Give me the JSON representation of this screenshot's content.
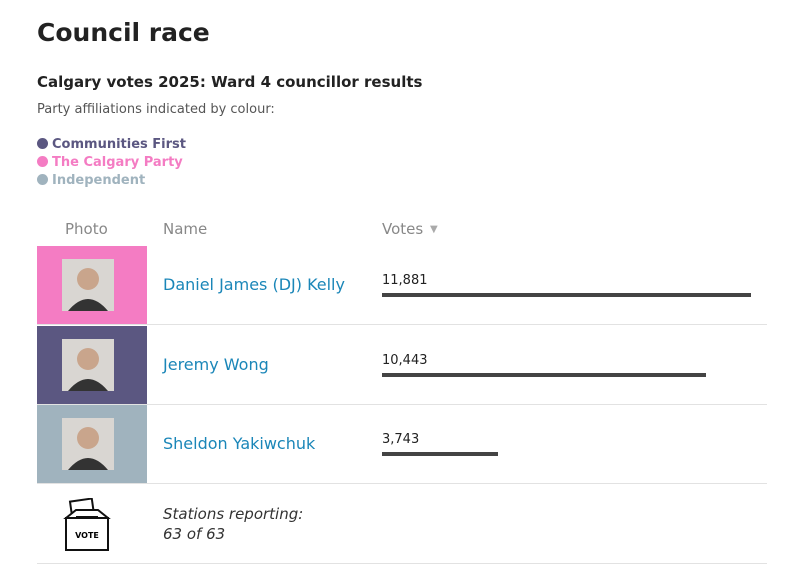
{
  "header": {
    "title": "Council race",
    "subtitle": "Calgary votes 2025: Ward 4 councillor results",
    "note": "Party affiliations indicated by colour:"
  },
  "legend": [
    {
      "name": "Communities First",
      "color": "#5b5781"
    },
    {
      "name": "The Calgary Party",
      "color": "#f47cc3"
    },
    {
      "name": "Independent",
      "color": "#a0b3be"
    }
  ],
  "table": {
    "columns": [
      "Photo",
      "Name",
      "Votes"
    ],
    "sort_indicator": "▼",
    "rows": [
      {
        "name": "Daniel James (DJ) Kelly",
        "party": 1,
        "votes": 11881,
        "votes_label": "11,881"
      },
      {
        "name": "Jeremy Wong",
        "party": 0,
        "votes": 10443,
        "votes_label": "10,443"
      },
      {
        "name": "Sheldon Yakiwchuk",
        "party": 2,
        "votes": 3743,
        "votes_label": "3,743"
      }
    ]
  },
  "footer": {
    "icon_label": "VOTE",
    "text": "Stations reporting:",
    "count": "63 of 63"
  }
}
